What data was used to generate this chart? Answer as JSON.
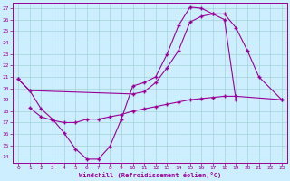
{
  "xlabel": "Windchill (Refroidissement éolien,°C)",
  "xlim": [
    -0.5,
    23.5
  ],
  "ylim": [
    13.5,
    27.5
  ],
  "yticks": [
    14,
    15,
    16,
    17,
    18,
    19,
    20,
    21,
    22,
    23,
    24,
    25,
    26,
    27
  ],
  "xticks": [
    0,
    1,
    2,
    3,
    4,
    5,
    6,
    7,
    8,
    9,
    10,
    11,
    12,
    13,
    14,
    15,
    16,
    17,
    18,
    19,
    20,
    21,
    22,
    23
  ],
  "line_color": "#990099",
  "bg_color": "#cceeff",
  "line1_x": [
    0,
    1,
    2,
    3,
    4,
    5,
    6,
    7,
    8,
    9,
    10,
    11,
    12,
    13,
    14,
    15,
    16,
    17,
    18,
    19
  ],
  "line1_y": [
    20.8,
    19.8,
    18.2,
    17.3,
    16.1,
    14.7,
    13.8,
    13.8,
    14.9,
    17.3,
    20.2,
    20.5,
    21.0,
    23.0,
    25.5,
    27.1,
    27.0,
    26.5,
    26.0,
    19.0
  ],
  "line2_x": [
    0,
    1,
    10,
    11,
    12,
    13,
    14,
    15,
    16,
    17,
    18,
    19,
    20,
    21,
    23
  ],
  "line2_y": [
    20.8,
    19.8,
    19.5,
    19.7,
    20.5,
    21.8,
    23.3,
    25.8,
    26.3,
    26.5,
    26.5,
    25.3,
    23.3,
    21.0,
    19.0
  ],
  "line3_x": [
    1,
    2,
    3,
    4,
    5,
    6,
    7,
    8,
    9,
    10,
    11,
    12,
    13,
    14,
    15,
    16,
    17,
    18,
    19,
    23
  ],
  "line3_y": [
    18.3,
    17.5,
    17.2,
    17.0,
    17.0,
    17.3,
    17.3,
    17.5,
    17.7,
    18.0,
    18.2,
    18.4,
    18.6,
    18.8,
    19.0,
    19.1,
    19.2,
    19.3,
    19.3,
    19.0
  ]
}
